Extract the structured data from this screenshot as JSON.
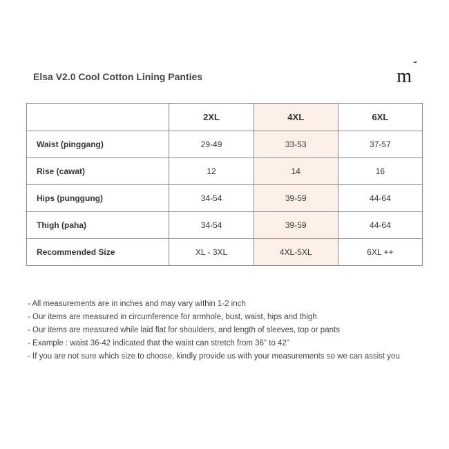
{
  "title": "Elsa V2.0 Cool Cotton Lining Panties",
  "logo_text": "m",
  "table": {
    "highlight_column_index": 2,
    "highlight_color": "#fdf0e8",
    "border_color": "#8a8a8a",
    "font_size": 12,
    "header_font_size": 13,
    "columns": [
      "",
      "2XL",
      "4XL",
      "6XL"
    ],
    "rows": [
      {
        "label": "Waist (pinggang)",
        "values": [
          "29-49",
          "33-53",
          "37-57"
        ]
      },
      {
        "label": "Rise (cawat)",
        "values": [
          "12",
          "14",
          "16"
        ]
      },
      {
        "label": "Hips (punggung)",
        "values": [
          "34-54",
          "39-59",
          "44-64"
        ]
      },
      {
        "label": "Thigh (paha)",
        "values": [
          "34-54",
          "39-59",
          "44-64"
        ]
      },
      {
        "label": "Recommended Size",
        "values": [
          "XL - 3XL",
          "4XL-5XL",
          "6XL ++"
        ]
      }
    ]
  },
  "notes": [
    "All measurements are in inches and may vary within 1-2 inch",
    "Our items are measured in circumference for armhole, bust, waist, hips and thigh",
    "Our items are measured while laid flat for shoulders, and length of sleeves, top or pants",
    "Example : waist 36-42 indicated that the waist can stretch from 36\" to 42\"",
    "If you are not sure which size to choose, kindly provide us with your measurements so we can assist you"
  ],
  "colors": {
    "background": "#ffffff",
    "text": "#333333",
    "notes_text": "#444444"
  }
}
